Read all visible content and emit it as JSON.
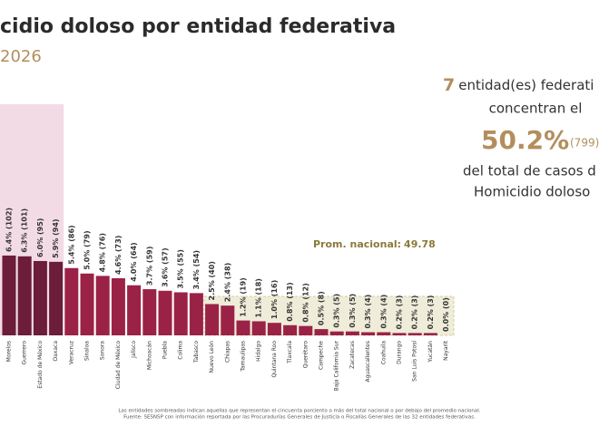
{
  "chart_data": {
    "type": "bar",
    "title": "cidio doloso por entidad federativa",
    "subtitle": "2026",
    "categories": [
      "Morelos",
      "Guerrero",
      "Estado de México",
      "Oaxaca",
      "Veracruz",
      "Sinaloa",
      "Sonora",
      "Ciudad de México",
      "Jalisco",
      "Michoacán",
      "Puebla",
      "Colima",
      "Tabasco",
      "Nuevo León",
      "Chiapas",
      "Tamaulipas",
      "Hidalgo",
      "Quintana Roo",
      "Tlaxcala",
      "Querétaro",
      "Campeche",
      "Baja California Sur",
      "Zacatecas",
      "Aguascalientes",
      "Coahuila",
      "Durango",
      "San Luis Potosí",
      "Yucatán",
      "Nayarit"
    ],
    "values": [
      102,
      101,
      95,
      94,
      86,
      79,
      76,
      73,
      64,
      59,
      57,
      55,
      54,
      40,
      38,
      19,
      18,
      16,
      13,
      12,
      8,
      5,
      5,
      4,
      4,
      3,
      3,
      3,
      0
    ],
    "value_labels": [
      "6.4% (102)",
      "6.3% (101)",
      "6.0% (95)",
      "5.9% (94)",
      "5.4% (86)",
      "5.0% (79)",
      "4.8% (76)",
      "4.6% (73)",
      "4.0% (64)",
      "3.7% (59)",
      "3.6% (57)",
      "3.5% (55)",
      "3.4% (54)",
      "2.5% (40)",
      "2.4% (38)",
      "1.2% (19)",
      "1.1% (18)",
      "1.0% (16)",
      "0.8% (13)",
      "0.8% (12)",
      "0.5% (8)",
      "0.3% (5)",
      "0.3% (5)",
      "0.3% (4)",
      "0.3% (4)",
      "0.2% (3)",
      "0.2% (3)",
      "0.2% (3)",
      "0.0% (0)"
    ],
    "colors": [
      "#6b1d3a",
      "#6b1d3a",
      "#6b1d3a",
      "#6b1d3a",
      "#9b2247",
      "#9b2247",
      "#9b2247",
      "#9b2247",
      "#9b2247",
      "#9b2247",
      "#9b2247",
      "#9b2247",
      "#9b2247",
      "#9b2247",
      "#9b2247",
      "#9b2247",
      "#9b2247",
      "#9b2247",
      "#9b2247",
      "#9b2247",
      "#9b2247",
      "#9b2247",
      "#9b2247",
      "#9b2247",
      "#9b2247",
      "#9b2247",
      "#9b2247",
      "#9b2247",
      "#9b2247"
    ],
    "ylim": [
      0,
      120
    ],
    "average_label": "Prom. nacional:",
    "average": 49.78,
    "callout": {
      "count": "7",
      "line1": "entidad(es) federati",
      "line2": "concentran el",
      "share": "50.2%",
      "cases": "(799)",
      "line3": "del total de casos d",
      "line4": "Homicidio doloso"
    },
    "notes": [
      "Las entidades sombreadas indican aquellas que representan el cincuenta porciento o más del total nacional o por debajo del promedio nacional.",
      "Fuente: SESNSP con información reportada por las Procuradurías Generales de Justicia o Fiscalías Generales de las 32 entidades federativas."
    ]
  }
}
